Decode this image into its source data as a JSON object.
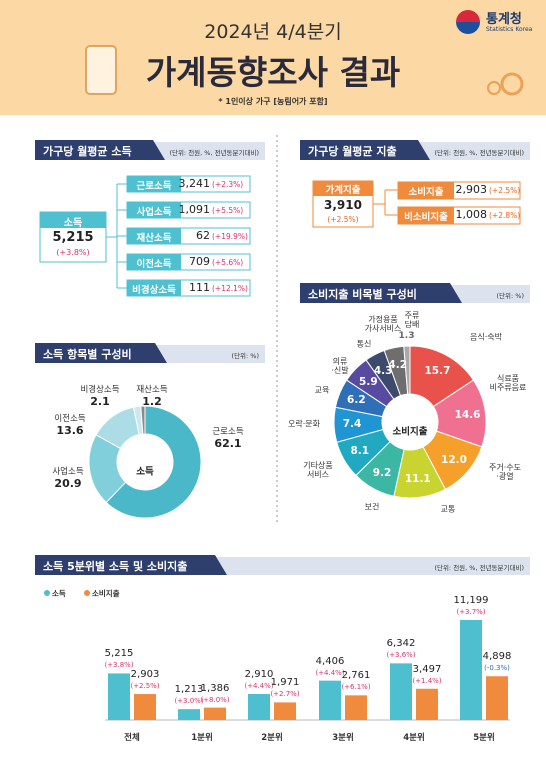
{
  "header": {
    "period": "2024년 4/4분기",
    "title": "가계동향조사 결과",
    "note": "* 1인이상 가구 [농림어가 포함]",
    "logo": "통계청",
    "logo_sub": "Statistics Korea"
  },
  "income": {
    "title": "가구당 월평균 소득",
    "unit": "(단위: 천원, %, 전년동분기대비)",
    "total": {
      "label": "소득",
      "value": "5,215",
      "change": "(+3.8%)"
    },
    "items": [
      {
        "label": "근로소득",
        "value": "3,241",
        "change": "(+2.3%)"
      },
      {
        "label": "사업소득",
        "value": "1,091",
        "change": "(+5.5%)"
      },
      {
        "label": "재산소득",
        "value": "62",
        "change": "(+19.9%)"
      },
      {
        "label": "이전소득",
        "value": "709",
        "change": "(+5.6%)"
      },
      {
        "label": "비경상소득",
        "value": "111",
        "change": "(+12.1%)"
      }
    ]
  },
  "spending": {
    "title": "가구당 월평균 지출",
    "unit": "(단위: 천원, %, 전년동분기대비)",
    "total": {
      "label": "가계지출",
      "value": "3,910",
      "change": "(+2.5%)"
    },
    "items": [
      {
        "label": "소비지출",
        "value": "2,903",
        "change": "(+2.5%)"
      },
      {
        "label": "비소비지출",
        "value": "1,008",
        "change": "(+2.8%)"
      }
    ]
  },
  "chart_data": [
    {
      "type": "pie",
      "title": "소득 항목별 구성비",
      "unit": "(단위: %)",
      "center_label": "소득",
      "categories": [
        "근로소득",
        "사업소득",
        "이전소득",
        "비경상소득",
        "재산소득"
      ],
      "values": [
        62.1,
        20.9,
        13.6,
        2.1,
        1.2
      ],
      "colors": [
        "#4bb8c9",
        "#82cfdc",
        "#acdde7",
        "#cbe9ef",
        "#8a8a8a"
      ]
    },
    {
      "type": "pie",
      "title": "소비지출 비목별 구성비",
      "unit": "(단위: %)",
      "center_label": "소비지출",
      "categories": [
        "음식·숙박",
        "식료품\n비주류음료",
        "주거·수도\n·광열",
        "교통",
        "보건",
        "기타상품\n서비스",
        "오락·문화",
        "교육",
        "의류\n·신발",
        "통신",
        "가정용품\n가사서비스",
        "주류\n담배"
      ],
      "values": [
        15.7,
        14.6,
        12.0,
        11.1,
        9.2,
        8.1,
        7.4,
        6.2,
        5.9,
        4.3,
        4.2,
        1.3
      ],
      "value_labels": [
        "15.7",
        "14.6",
        "12.0",
        "11.1",
        "9.2",
        "8.1",
        "7.4",
        "6.2",
        "5.9",
        "4.3",
        "4.2",
        "1.3"
      ],
      "colors": [
        "#e8524a",
        "#f07092",
        "#f5a02a",
        "#c9d431",
        "#3bb7a3",
        "#22a9c2",
        "#1f95d4",
        "#2f6fb8",
        "#574aa0",
        "#3d4a6d",
        "#6e6e6e",
        "#a9a9a9"
      ]
    },
    {
      "type": "bar",
      "title": "소득 5분위별 소득 및 소비지출",
      "unit": "(단위: 천원, %, 전년동분기대비)",
      "categories": [
        "전체",
        "1분위",
        "2분위",
        "3분위",
        "4분위",
        "5분위"
      ],
      "series": [
        {
          "name": "소득",
          "color": "#4dbfcf",
          "values": [
            5215,
            1213,
            2910,
            4406,
            6342,
            11199
          ],
          "value_labels": [
            "5,215",
            "1,213",
            "2,910",
            "4,406",
            "6,342",
            "11,199"
          ],
          "changes": [
            "(+3.8%)",
            "(+3.0%)",
            "(+4.4%)",
            "(+4.4%)",
            "(+3.6%)",
            "(+3.7%)"
          ]
        },
        {
          "name": "소비지출",
          "color": "#f08a3c",
          "values": [
            2903,
            1386,
            1971,
            2761,
            3497,
            4898
          ],
          "value_labels": [
            "2,903",
            "1,386",
            "1,971",
            "2,761",
            "3,497",
            "4,898"
          ],
          "changes": [
            "(+2.5%)",
            "(+8.0%)",
            "(+2.7%)",
            "(+6.1%)",
            "(+1.4%)",
            "(-0.3%)"
          ]
        }
      ]
    }
  ]
}
